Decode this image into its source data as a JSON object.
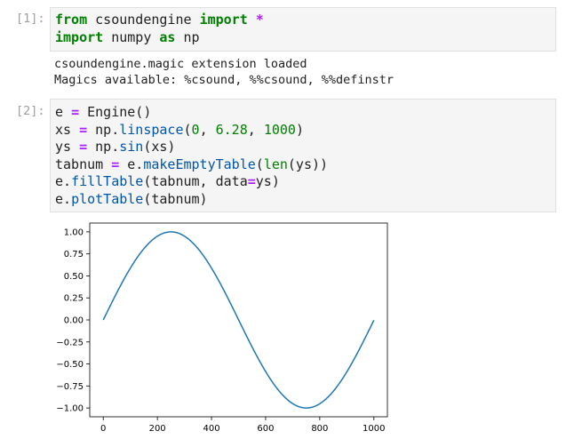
{
  "cells": [
    {
      "prompt": "[1]:",
      "lines": [
        [
          {
            "t": "from",
            "c": "kw"
          },
          {
            "t": " csoundengine ",
            "c": ""
          },
          {
            "t": "import",
            "c": "kw"
          },
          {
            "t": " ",
            "c": ""
          },
          {
            "t": "*",
            "c": "op"
          }
        ],
        [
          {
            "t": "import",
            "c": "kw"
          },
          {
            "t": " numpy ",
            "c": ""
          },
          {
            "t": "as",
            "c": "kw"
          },
          {
            "t": " np",
            "c": ""
          }
        ]
      ],
      "output": [
        "csoundengine.magic extension loaded",
        "Magics available: %csound, %%csound, %%definstr"
      ]
    },
    {
      "prompt": "[2]:",
      "lines": [
        [
          {
            "t": "e ",
            "c": ""
          },
          {
            "t": "=",
            "c": "op"
          },
          {
            "t": " Engine()",
            "c": ""
          }
        ],
        [
          {
            "t": "xs ",
            "c": ""
          },
          {
            "t": "=",
            "c": "op"
          },
          {
            "t": " np.",
            "c": ""
          },
          {
            "t": "linspace",
            "c": "fn"
          },
          {
            "t": "(",
            "c": ""
          },
          {
            "t": "0",
            "c": "num"
          },
          {
            "t": ", ",
            "c": ""
          },
          {
            "t": "6.28",
            "c": "num"
          },
          {
            "t": ", ",
            "c": ""
          },
          {
            "t": "1000",
            "c": "num"
          },
          {
            "t": ")",
            "c": ""
          }
        ],
        [
          {
            "t": "ys ",
            "c": ""
          },
          {
            "t": "=",
            "c": "op"
          },
          {
            "t": " np.",
            "c": ""
          },
          {
            "t": "sin",
            "c": "fn"
          },
          {
            "t": "(xs)",
            "c": ""
          }
        ],
        [
          {
            "t": "tabnum ",
            "c": ""
          },
          {
            "t": "=",
            "c": "op"
          },
          {
            "t": " e.",
            "c": ""
          },
          {
            "t": "makeEmptyTable",
            "c": "fn"
          },
          {
            "t": "(",
            "c": ""
          },
          {
            "t": "len",
            "c": "bi"
          },
          {
            "t": "(ys))",
            "c": ""
          }
        ],
        [
          {
            "t": "e.",
            "c": ""
          },
          {
            "t": "fillTable",
            "c": "fn"
          },
          {
            "t": "(tabnum, data",
            "c": ""
          },
          {
            "t": "=",
            "c": "op"
          },
          {
            "t": "ys)",
            "c": ""
          }
        ],
        [
          {
            "t": "e.",
            "c": ""
          },
          {
            "t": "plotTable",
            "c": "fn"
          },
          {
            "t": "(tabnum)",
            "c": ""
          }
        ]
      ]
    }
  ],
  "chart_data": {
    "type": "line",
    "title": "",
    "xlabel": "",
    "ylabel": "",
    "xlim": [
      -50,
      1050
    ],
    "ylim": [
      -1.1,
      1.1
    ],
    "xticks": [
      "0",
      "200",
      "400",
      "600",
      "800",
      "1000"
    ],
    "yticks": [
      "1.00",
      "0.75",
      "0.50",
      "0.25",
      "0.00",
      "−0.25",
      "−0.50",
      "−0.75",
      "−1.00"
    ],
    "series": [
      {
        "formula": "sin(6.28*x/1000)",
        "x_range": [
          0,
          1000
        ],
        "points": 1000,
        "color": "#1f77b4"
      }
    ],
    "grid": false
  }
}
